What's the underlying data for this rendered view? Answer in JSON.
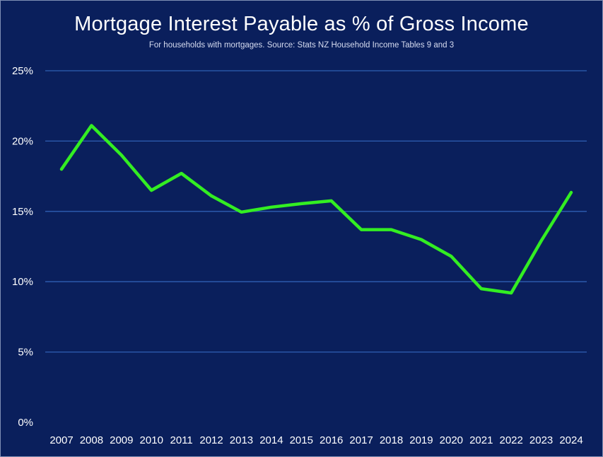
{
  "chart_data": {
    "type": "line",
    "title": "Mortgage Interest Payable as % of Gross Income",
    "subtitle": "For households with mortgages. Source: Stats NZ Household Income Tables 9 and 3",
    "x": [
      "2007",
      "2008",
      "2009",
      "2010",
      "2011",
      "2012",
      "2013",
      "2014",
      "2015",
      "2016",
      "2017",
      "2018",
      "2019",
      "2020",
      "2021",
      "2022",
      "2023",
      "2024"
    ],
    "series": [
      {
        "values": [
          18.0,
          21.1,
          19.0,
          16.5,
          17.7,
          16.1,
          14.95,
          15.3,
          15.55,
          15.75,
          13.7,
          13.7,
          13.0,
          11.8,
          9.5,
          9.2,
          12.9,
          16.35
        ]
      }
    ],
    "y_ticks": [
      "0%",
      "5%",
      "10%",
      "15%",
      "20%",
      "25%"
    ],
    "ylim": [
      0,
      25
    ],
    "grid": true,
    "legend": "none",
    "colors": {
      "background": "#0a1f5c",
      "line": "#33ee22",
      "grid": "#2f5fb3",
      "text": "#ffffff"
    }
  }
}
